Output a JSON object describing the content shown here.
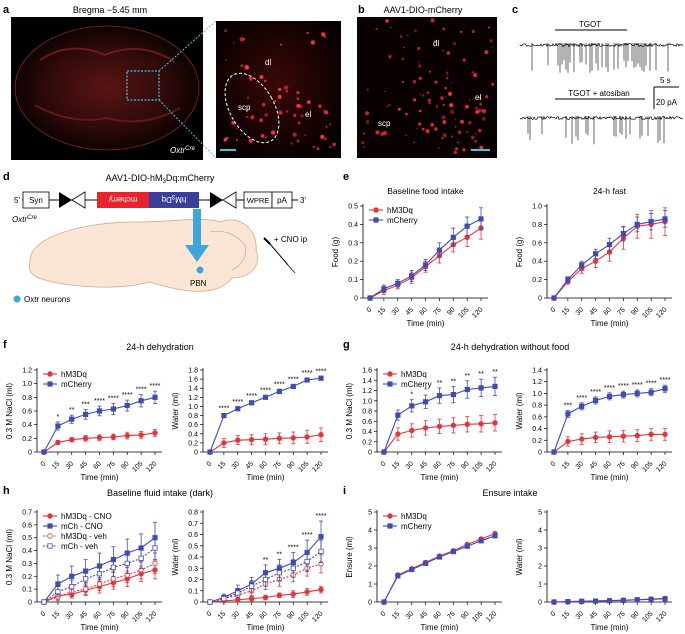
{
  "panels": {
    "a": {
      "letter": "a",
      "title": "Bregma −5.45 mm",
      "region_labels": [
        "dl",
        "scp",
        "el"
      ],
      "genotype": "Oxtr",
      "genotype_sup": "Cre"
    },
    "b": {
      "letter": "b",
      "title": "AAV1-DIO-mCherry",
      "region_labels": [
        "dl",
        "el",
        "scp"
      ]
    },
    "c": {
      "letter": "c",
      "trace1_label": "TGOT",
      "trace2_label": "TGOT + atosiban",
      "scale_time": "5 s",
      "scale_amp": "20 pA"
    },
    "d": {
      "letter": "d",
      "construct_title": "AAV1-DIO-hM",
      "construct_sub": "3",
      "construct_title_end": "Dq:mCherry",
      "five_prime": "5'",
      "three_prime": "3'",
      "elements": [
        "Syn",
        "mcherry",
        "hM",
        "WPRE",
        "pA"
      ],
      "hm_sub": "3",
      "hm_end": "Dq",
      "genotype": "Oxtr",
      "genotype_sup": "Cre",
      "injection": "+ CNO ip",
      "target": "PBN",
      "legend": "Oxtr neurons"
    },
    "e": {
      "letter": "e"
    },
    "f": {
      "letter": "f",
      "title": "24-h dehydration"
    },
    "g": {
      "letter": "g",
      "title": "24-h dehydration without food"
    },
    "h": {
      "letter": "h",
      "title": "Baseline fluid intake (dark)"
    },
    "i": {
      "letter": "i",
      "title": "Ensure intake"
    }
  },
  "colors": {
    "hm3dq": "#e8333a",
    "mcherry": "#3f4db3",
    "bg_panel": "#000000"
  },
  "chart_data": [
    {
      "id": "e1",
      "type": "line",
      "title": "Baseline food intake",
      "xlabel": "Time (min)",
      "ylabel": "Food (g)",
      "x": [
        0,
        15,
        30,
        45,
        60,
        75,
        90,
        105,
        120
      ],
      "ylim": [
        0,
        0.5
      ],
      "yticks": [
        0,
        0.1,
        0.2,
        0.3,
        0.4,
        0.5
      ],
      "yticklabels": [
        "0",
        "0.1",
        "0.2",
        "0.3",
        "0.4",
        "0.5"
      ],
      "legend": "top-left",
      "series": [
        {
          "name": "hM3Dq",
          "values": [
            0,
            0.04,
            0.07,
            0.11,
            0.17,
            0.23,
            0.29,
            0.33,
            0.38
          ],
          "err": [
            0,
            0.02,
            0.02,
            0.03,
            0.03,
            0.04,
            0.04,
            0.05,
            0.06
          ]
        },
        {
          "name": "mCherry",
          "values": [
            0,
            0.05,
            0.08,
            0.12,
            0.18,
            0.26,
            0.33,
            0.39,
            0.43
          ],
          "err": [
            0,
            0.02,
            0.02,
            0.03,
            0.03,
            0.04,
            0.05,
            0.05,
            0.06
          ]
        }
      ],
      "stars": []
    },
    {
      "id": "e2",
      "type": "line",
      "title": "24-h fast",
      "xlabel": "Time (min)",
      "ylabel": "Food (g)",
      "x": [
        0,
        15,
        30,
        45,
        60,
        75,
        90,
        105,
        120
      ],
      "ylim": [
        0,
        1.0
      ],
      "yticks": [
        0,
        0.2,
        0.4,
        0.6,
        0.8,
        1.0
      ],
      "yticklabels": [
        "0",
        "0.2",
        "0.4",
        "0.6",
        "0.8",
        "1.0"
      ],
      "legend": "none",
      "series": [
        {
          "name": "hM3Dq",
          "values": [
            0,
            0.18,
            0.32,
            0.4,
            0.5,
            0.65,
            0.78,
            0.8,
            0.83
          ],
          "err": [
            0,
            0.03,
            0.05,
            0.07,
            0.1,
            0.12,
            0.13,
            0.15,
            0.15
          ]
        },
        {
          "name": "mCherry",
          "values": [
            0,
            0.2,
            0.36,
            0.48,
            0.58,
            0.7,
            0.8,
            0.83,
            0.86
          ],
          "err": [
            0,
            0.03,
            0.04,
            0.05,
            0.07,
            0.08,
            0.08,
            0.09,
            0.09
          ]
        }
      ],
      "stars": []
    },
    {
      "id": "f1",
      "type": "line",
      "title": "",
      "xlabel": "Time (min)",
      "ylabel": "0.3 M NaCl (ml)",
      "x": [
        0,
        15,
        30,
        45,
        60,
        75,
        90,
        105,
        120
      ],
      "ylim": [
        0,
        1.2
      ],
      "yticks": [
        0,
        0.2,
        0.4,
        0.6,
        0.8,
        1.0,
        1.2
      ],
      "yticklabels": [
        "0",
        "0.2",
        "0.4",
        "0.6",
        "0.8",
        "1.0",
        "1.2"
      ],
      "legend": "top-left",
      "series": [
        {
          "name": "hM3Dq",
          "values": [
            0,
            0.14,
            0.18,
            0.2,
            0.21,
            0.22,
            0.24,
            0.25,
            0.28
          ],
          "err": [
            0,
            0.03,
            0.03,
            0.04,
            0.04,
            0.04,
            0.05,
            0.05,
            0.05
          ]
        },
        {
          "name": "mCherry",
          "values": [
            0,
            0.38,
            0.48,
            0.55,
            0.6,
            0.63,
            0.68,
            0.75,
            0.8
          ],
          "err": [
            0,
            0.06,
            0.06,
            0.07,
            0.07,
            0.08,
            0.08,
            0.09,
            0.09
          ]
        }
      ],
      "stars": [
        "",
        "*",
        "**",
        "***",
        "****",
        "****",
        "****",
        "****",
        "****"
      ]
    },
    {
      "id": "f2",
      "type": "line",
      "title": "",
      "xlabel": "Time (min)",
      "ylabel": "Water (ml)",
      "x": [
        0,
        15,
        30,
        45,
        60,
        75,
        90,
        105,
        120
      ],
      "ylim": [
        0,
        1.8
      ],
      "yticks": [
        0,
        0.2,
        0.4,
        0.6,
        0.8,
        1.0,
        1.2,
        1.4,
        1.6,
        1.8
      ],
      "yticklabels": [
        "0",
        "0.2",
        "0.4",
        "0.6",
        "0.8",
        "1.0",
        "1.2",
        "1.4",
        "1.6",
        "1.8"
      ],
      "legend": "none",
      "series": [
        {
          "name": "hM3Dq",
          "values": [
            0,
            0.2,
            0.26,
            0.27,
            0.28,
            0.3,
            0.31,
            0.33,
            0.38
          ],
          "err": [
            0,
            0.1,
            0.1,
            0.11,
            0.12,
            0.12,
            0.13,
            0.14,
            0.15
          ]
        },
        {
          "name": "mCherry",
          "values": [
            0,
            0.8,
            0.95,
            1.08,
            1.2,
            1.33,
            1.44,
            1.58,
            1.62
          ],
          "err": [
            0,
            0.04,
            0.04,
            0.04,
            0.04,
            0.04,
            0.04,
            0.04,
            0.04
          ]
        }
      ],
      "stars": [
        "",
        "****",
        "****",
        "****",
        "****",
        "****",
        "****",
        "****",
        "****"
      ]
    },
    {
      "id": "g1",
      "type": "line",
      "title": "",
      "xlabel": "Time (min)",
      "ylabel": "0.3 M NaCl (ml)",
      "x": [
        0,
        15,
        30,
        45,
        60,
        75,
        90,
        105,
        120
      ],
      "ylim": [
        0,
        1.6
      ],
      "yticks": [
        0,
        0.2,
        0.4,
        0.6,
        0.8,
        1.0,
        1.2,
        1.4,
        1.6
      ],
      "yticklabels": [
        "0",
        "0.2",
        "0.4",
        "0.6",
        "0.8",
        "1.0",
        "1.2",
        "1.4",
        "1.6"
      ],
      "legend": "top-left",
      "series": [
        {
          "name": "hM3Dq",
          "values": [
            0,
            0.35,
            0.42,
            0.47,
            0.5,
            0.52,
            0.54,
            0.55,
            0.57
          ],
          "err": [
            0,
            0.12,
            0.13,
            0.14,
            0.14,
            0.15,
            0.15,
            0.16,
            0.16
          ]
        },
        {
          "name": "mCherry",
          "values": [
            0,
            0.72,
            0.9,
            0.98,
            1.1,
            1.12,
            1.22,
            1.25,
            1.28
          ],
          "err": [
            0,
            0.1,
            0.12,
            0.13,
            0.15,
            0.16,
            0.17,
            0.17,
            0.18
          ]
        }
      ],
      "stars": [
        "",
        "",
        "*",
        "*",
        "**",
        "**",
        "**",
        "**",
        "**"
      ]
    },
    {
      "id": "g2",
      "type": "line",
      "title": "",
      "xlabel": "Time (min)",
      "ylabel": "Water (ml)",
      "x": [
        0,
        15,
        30,
        45,
        60,
        75,
        90,
        105,
        120
      ],
      "ylim": [
        0,
        1.4
      ],
      "yticks": [
        0,
        0.2,
        0.4,
        0.6,
        0.8,
        1.0,
        1.2,
        1.4
      ],
      "yticklabels": [
        "0",
        "0.2",
        "0.4",
        "0.6",
        "0.8",
        "1.0",
        "1.2",
        "1.4"
      ],
      "legend": "none",
      "series": [
        {
          "name": "hM3Dq",
          "values": [
            0,
            0.18,
            0.22,
            0.25,
            0.26,
            0.27,
            0.28,
            0.3,
            0.3
          ],
          "err": [
            0,
            0.08,
            0.09,
            0.09,
            0.1,
            0.1,
            0.1,
            0.1,
            0.1
          ]
        },
        {
          "name": "mCherry",
          "values": [
            0,
            0.65,
            0.78,
            0.88,
            0.95,
            0.98,
            1.0,
            1.02,
            1.08
          ],
          "err": [
            0,
            0.06,
            0.06,
            0.06,
            0.06,
            0.06,
            0.06,
            0.06,
            0.06
          ]
        }
      ],
      "stars": [
        "",
        "***",
        "****",
        "****",
        "****",
        "****",
        "****",
        "****",
        "****"
      ]
    },
    {
      "id": "h1",
      "type": "line",
      "title": "",
      "xlabel": "Time (min)",
      "ylabel": "0.3 M NaCl (ml)",
      "x": [
        0,
        15,
        30,
        45,
        60,
        75,
        90,
        105,
        120
      ],
      "ylim": [
        0,
        0.7
      ],
      "yticks": [
        0,
        0.1,
        0.2,
        0.3,
        0.4,
        0.5,
        0.6,
        0.7
      ],
      "yticklabels": [
        "0",
        "0.1",
        "0.2",
        "0.3",
        "0.4",
        "0.5",
        "0.6",
        "0.7"
      ],
      "legend": "top-left",
      "series": [
        {
          "name": "hM3Dq - CNO",
          "style": "solid-red",
          "values": [
            0,
            0.05,
            0.06,
            0.09,
            0.12,
            0.15,
            0.18,
            0.22,
            0.25
          ],
          "err": [
            0,
            0.03,
            0.03,
            0.04,
            0.05,
            0.05,
            0.06,
            0.06,
            0.07
          ]
        },
        {
          "name": "mCh - CNO",
          "style": "solid-blue",
          "values": [
            0,
            0.14,
            0.2,
            0.24,
            0.28,
            0.33,
            0.38,
            0.42,
            0.5
          ],
          "err": [
            0,
            0.07,
            0.08,
            0.09,
            0.1,
            0.1,
            0.11,
            0.11,
            0.12
          ]
        },
        {
          "name": "hM3Dq - veh",
          "style": "dashed-red",
          "values": [
            0,
            0.04,
            0.08,
            0.1,
            0.14,
            0.18,
            0.21,
            0.25,
            0.3
          ],
          "err": [
            0,
            0.03,
            0.04,
            0.04,
            0.05,
            0.06,
            0.06,
            0.07,
            0.08
          ]
        },
        {
          "name": "mCh - veh",
          "style": "dashed-blue",
          "values": [
            0,
            0.08,
            0.12,
            0.18,
            0.22,
            0.27,
            0.3,
            0.34,
            0.42
          ],
          "err": [
            0,
            0.04,
            0.05,
            0.06,
            0.06,
            0.07,
            0.08,
            0.08,
            0.09
          ]
        }
      ],
      "stars": []
    },
    {
      "id": "h2",
      "type": "line",
      "title": "",
      "xlabel": "Time (min)",
      "ylabel": "Water (ml)",
      "x": [
        0,
        15,
        30,
        45,
        60,
        75,
        90,
        105,
        120
      ],
      "ylim": [
        0,
        0.8
      ],
      "yticks": [
        0,
        0.1,
        0.2,
        0.3,
        0.4,
        0.5,
        0.6,
        0.7,
        0.8
      ],
      "yticklabels": [
        "0",
        "0.1",
        "0.2",
        "0.3",
        "0.4",
        "0.5",
        "0.6",
        "0.7",
        "0.8"
      ],
      "legend": "none",
      "series": [
        {
          "name": "hM3Dq - CNO",
          "style": "solid-red",
          "values": [
            0,
            0.01,
            0.02,
            0.03,
            0.04,
            0.06,
            0.07,
            0.09,
            0.11
          ],
          "err": [
            0,
            0.01,
            0.01,
            0.02,
            0.02,
            0.02,
            0.03,
            0.03,
            0.03
          ]
        },
        {
          "name": "mCh - CNO",
          "style": "solid-blue",
          "values": [
            0,
            0.04,
            0.1,
            0.16,
            0.26,
            0.3,
            0.35,
            0.44,
            0.58
          ],
          "err": [
            0,
            0.03,
            0.05,
            0.06,
            0.07,
            0.08,
            0.09,
            0.11,
            0.14
          ]
        },
        {
          "name": "hM3Dq - veh",
          "style": "dashed-red",
          "values": [
            0,
            0.03,
            0.06,
            0.1,
            0.16,
            0.2,
            0.24,
            0.3,
            0.34
          ],
          "err": [
            0,
            0.02,
            0.03,
            0.04,
            0.05,
            0.06,
            0.06,
            0.07,
            0.08
          ]
        },
        {
          "name": "mCh - veh",
          "style": "dashed-blue",
          "values": [
            0,
            0.03,
            0.08,
            0.14,
            0.2,
            0.26,
            0.3,
            0.36,
            0.45
          ],
          "err": [
            0,
            0.02,
            0.04,
            0.05,
            0.06,
            0.07,
            0.08,
            0.09,
            0.1
          ]
        }
      ],
      "stars": [
        "",
        "",
        "",
        "",
        "**",
        "**",
        "****",
        "****",
        "****"
      ]
    },
    {
      "id": "i1",
      "type": "line",
      "title": "",
      "xlabel": "Time (min)",
      "ylabel": "Ensure (ml)",
      "x": [
        0,
        15,
        30,
        45,
        60,
        75,
        90,
        105,
        120
      ],
      "ylim": [
        0,
        5
      ],
      "yticks": [
        0,
        1,
        2,
        3,
        4,
        5
      ],
      "yticklabels": [
        "0",
        "1",
        "2",
        "3",
        "4",
        "5"
      ],
      "legend": "top-left",
      "series": [
        {
          "name": "hM3Dq",
          "values": [
            0,
            1.5,
            1.85,
            2.2,
            2.55,
            2.85,
            3.2,
            3.5,
            3.8
          ],
          "err": [
            0,
            0.06,
            0.06,
            0.07,
            0.07,
            0.08,
            0.08,
            0.09,
            0.1
          ]
        },
        {
          "name": "mCherry",
          "values": [
            0,
            1.45,
            1.8,
            2.15,
            2.5,
            2.8,
            3.1,
            3.4,
            3.68
          ],
          "err": [
            0,
            0.06,
            0.06,
            0.07,
            0.07,
            0.08,
            0.08,
            0.09,
            0.1
          ]
        }
      ],
      "stars": []
    },
    {
      "id": "i2",
      "type": "line",
      "title": "",
      "xlabel": "Time (min)",
      "ylabel": "Water (ml)",
      "x": [
        0,
        15,
        30,
        45,
        60,
        75,
        90,
        105,
        120
      ],
      "ylim": [
        0,
        5
      ],
      "yticks": [
        0,
        1,
        2,
        3,
        4,
        5
      ],
      "yticklabels": [
        "0",
        "1",
        "2",
        "3",
        "4",
        "5"
      ],
      "legend": "none",
      "series": [
        {
          "name": "hM3Dq",
          "values": [
            0,
            0.02,
            0.04,
            0.06,
            0.08,
            0.1,
            0.13,
            0.16,
            0.2
          ],
          "err": [
            0,
            0.01,
            0.01,
            0.02,
            0.02,
            0.02,
            0.03,
            0.03,
            0.04
          ]
        },
        {
          "name": "mCherry",
          "values": [
            0,
            0.02,
            0.04,
            0.05,
            0.07,
            0.09,
            0.12,
            0.15,
            0.18
          ],
          "err": [
            0,
            0.01,
            0.01,
            0.02,
            0.02,
            0.02,
            0.03,
            0.03,
            0.04
          ]
        }
      ],
      "stars": []
    }
  ]
}
